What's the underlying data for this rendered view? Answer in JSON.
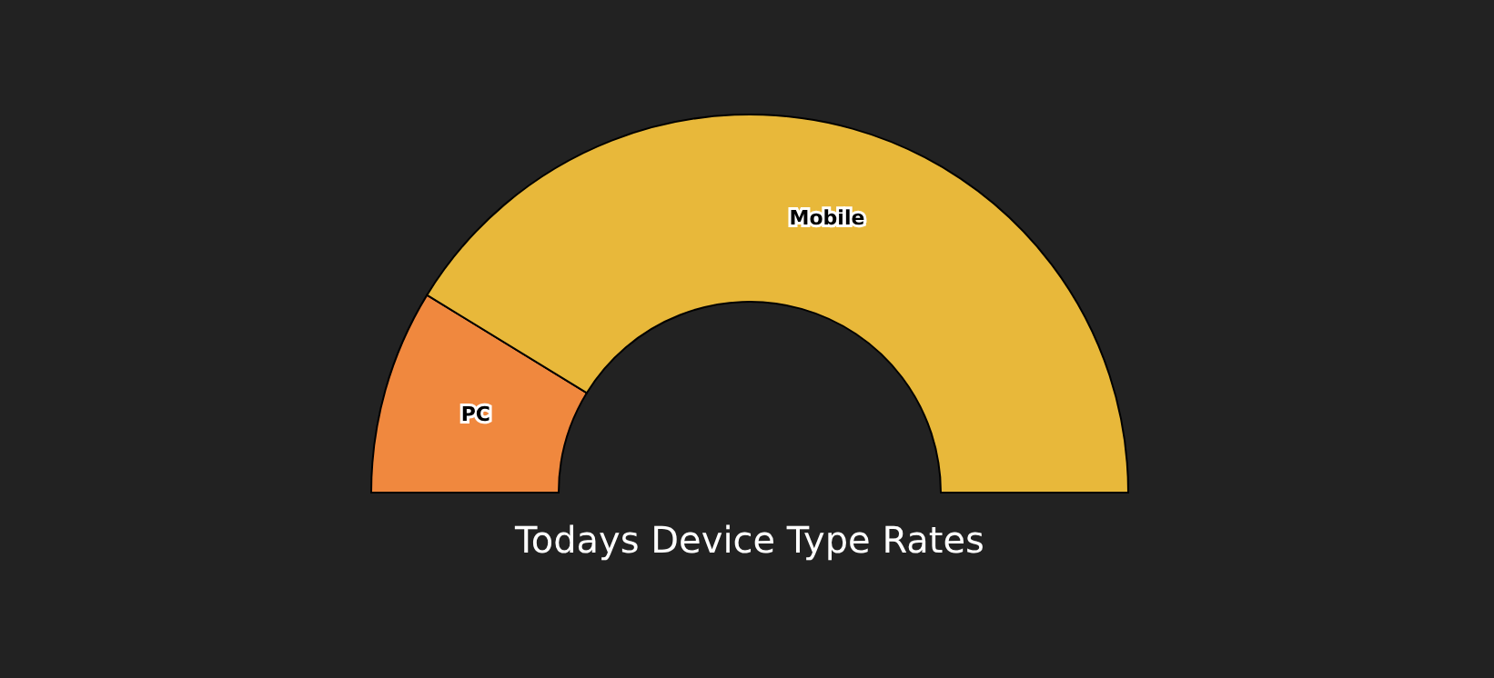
{
  "chart_data": {
    "type": "donut",
    "title": "Todays Device Type Rates",
    "categories": [
      "PC",
      "Mobile"
    ],
    "values": [
      17.5,
      82.5
    ],
    "colors": [
      "#f0883e",
      "#e8b83a"
    ]
  }
}
